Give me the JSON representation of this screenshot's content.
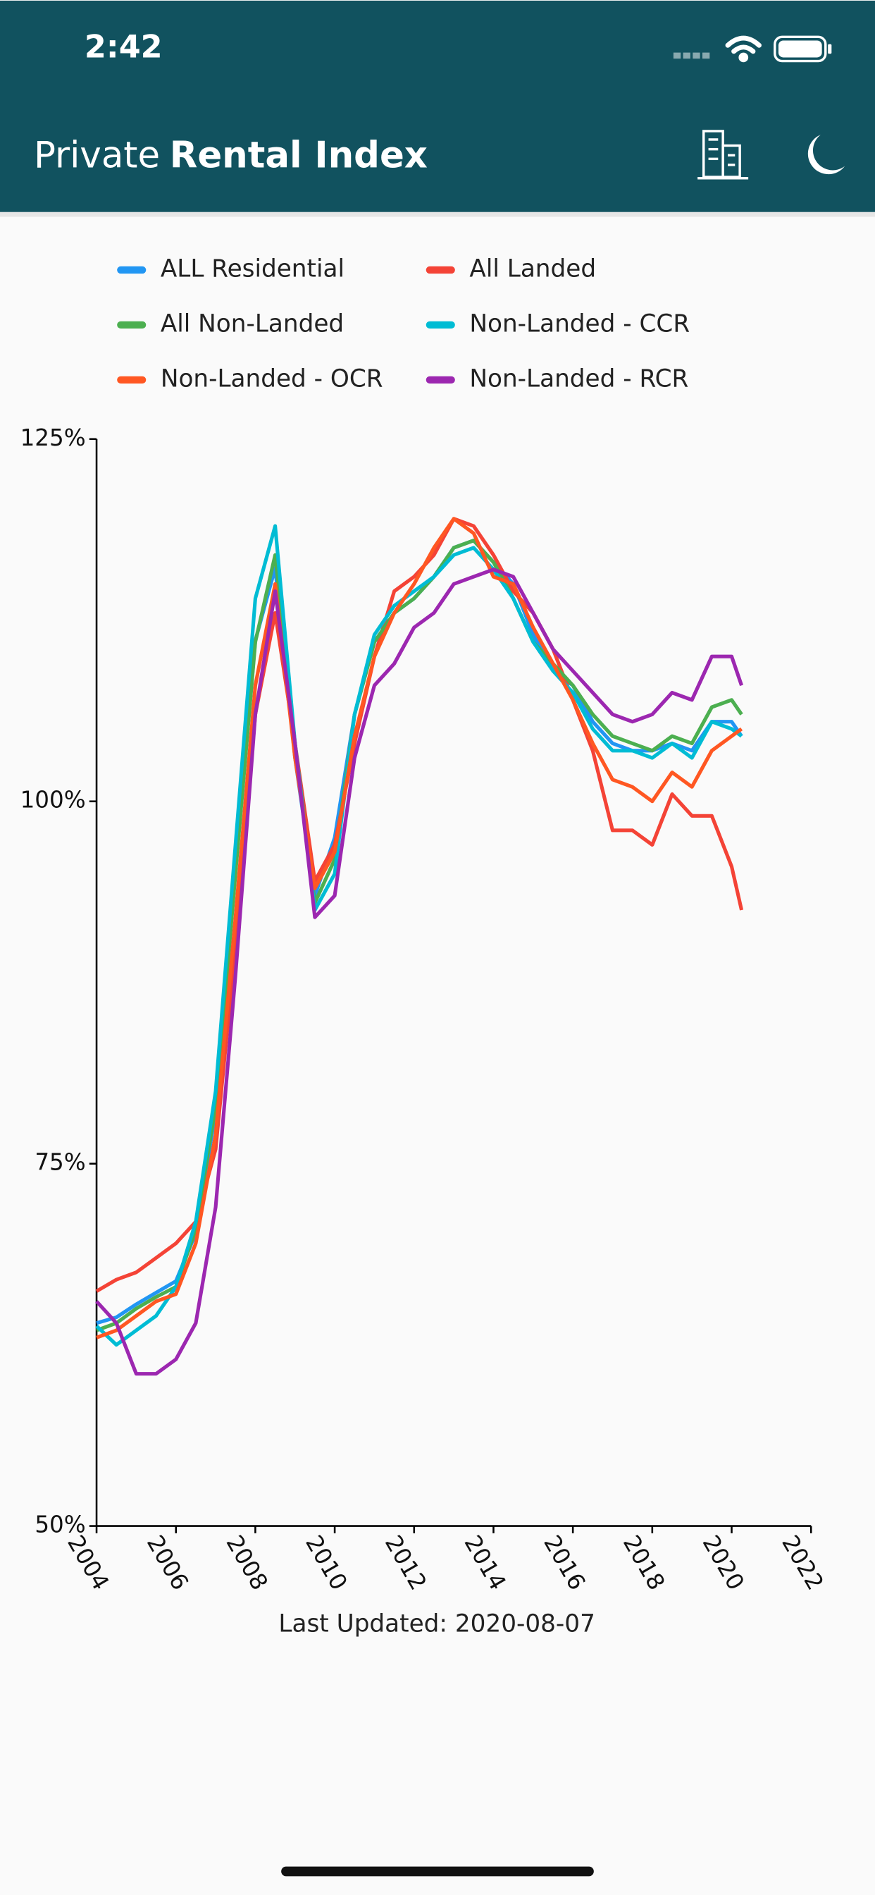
{
  "status_bar": {
    "time": "2:42"
  },
  "header": {
    "title_light": "Private",
    "title_bold": "Rental Index"
  },
  "chart_data": {
    "type": "line",
    "x": [
      2004,
      2004.5,
      2005,
      2005.5,
      2006,
      2006.5,
      2007,
      2007.5,
      2008,
      2008.5,
      2009,
      2009.5,
      2010,
      2010.5,
      2011,
      2011.5,
      2012,
      2012.5,
      2013,
      2013.5,
      2014,
      2014.5,
      2015,
      2015.5,
      2016,
      2016.5,
      2017,
      2017.5,
      2018,
      2018.5,
      2019,
      2019.5,
      2020,
      2020.25
    ],
    "series": [
      {
        "name": "ALL Residential",
        "color": "#2196f3",
        "values": [
          64,
          64.4,
          65.3,
          66.1,
          66.9,
          70.2,
          78.6,
          95.2,
          111.1,
          116.1,
          103,
          93.5,
          97.5,
          106,
          111,
          113,
          114,
          115.5,
          117.5,
          118,
          116.5,
          115,
          111.5,
          109,
          108,
          105.5,
          104,
          103.5,
          103.5,
          104,
          103.5,
          105.5,
          105.5,
          104.5
        ]
      },
      {
        "name": "All Landed",
        "color": "#f44336",
        "values": [
          66.2,
          67,
          67.5,
          68.5,
          69.5,
          71,
          76,
          90,
          106,
          113,
          104,
          94.5,
          97,
          104,
          110,
          114.5,
          115.5,
          117,
          119.5,
          119,
          117,
          114.5,
          113,
          110.5,
          107,
          103.5,
          98,
          98,
          97,
          100.5,
          99,
          99,
          95.5,
          92.5
        ]
      },
      {
        "name": "All Non-Landed",
        "color": "#4caf50",
        "values": [
          63.5,
          64,
          65,
          65.8,
          66.5,
          70.5,
          79,
          95,
          111,
          117,
          104,
          93,
          96,
          106,
          111,
          113,
          114,
          115.5,
          117.5,
          118,
          116.5,
          114,
          111,
          109.5,
          108,
          106,
          104.5,
          104,
          103.5,
          104.5,
          104,
          106.5,
          107,
          106
        ]
      },
      {
        "name": "Non-Landed - CCR",
        "color": "#00bcd4",
        "values": [
          63.8,
          62.5,
          63.5,
          64.5,
          66.5,
          71,
          80,
          97,
          114,
          119,
          104,
          92.5,
          95,
          106,
          111.5,
          113.5,
          114.5,
          115.5,
          117,
          117.5,
          116,
          114,
          111,
          109,
          107.5,
          105,
          103.5,
          103.5,
          103,
          104,
          103,
          105.5,
          105,
          104.5
        ]
      },
      {
        "name": "Non-Landed - OCR",
        "color": "#ff5722",
        "values": [
          63,
          63.5,
          64.5,
          65.5,
          66,
          69.5,
          77,
          92,
          108,
          115,
          103,
          94,
          96.5,
          104.5,
          110,
          113,
          115,
          117.5,
          119.5,
          118.5,
          115.5,
          115,
          112,
          109.5,
          107,
          104,
          101.5,
          101,
          100,
          102,
          101,
          103.5,
          104.5,
          105
        ]
      },
      {
        "name": "Non-Landed - RCR",
        "color": "#9c27b0",
        "values": [
          65.5,
          64,
          60.5,
          60.5,
          61.5,
          64,
          72,
          88,
          106,
          114.5,
          104,
          92,
          93.5,
          103,
          108,
          109.5,
          112,
          113,
          115,
          115.5,
          116,
          115.5,
          113,
          110.5,
          109,
          107.5,
          106,
          105.5,
          106,
          107.5,
          107,
          110,
          110,
          108
        ]
      }
    ],
    "xlim": [
      2004,
      2022
    ],
    "xticks": [
      2004,
      2006,
      2008,
      2010,
      2012,
      2014,
      2016,
      2018,
      2020,
      2022
    ],
    "ylim": [
      50,
      125
    ],
    "yticks": [
      {
        "value": 50,
        "label": "50%"
      },
      {
        "value": 75,
        "label": "75%"
      },
      {
        "value": 100,
        "label": "100%"
      },
      {
        "value": 125,
        "label": "125%"
      }
    ],
    "legend": "top"
  },
  "footer": {
    "text": "Last Updated: 2020-08-07"
  }
}
